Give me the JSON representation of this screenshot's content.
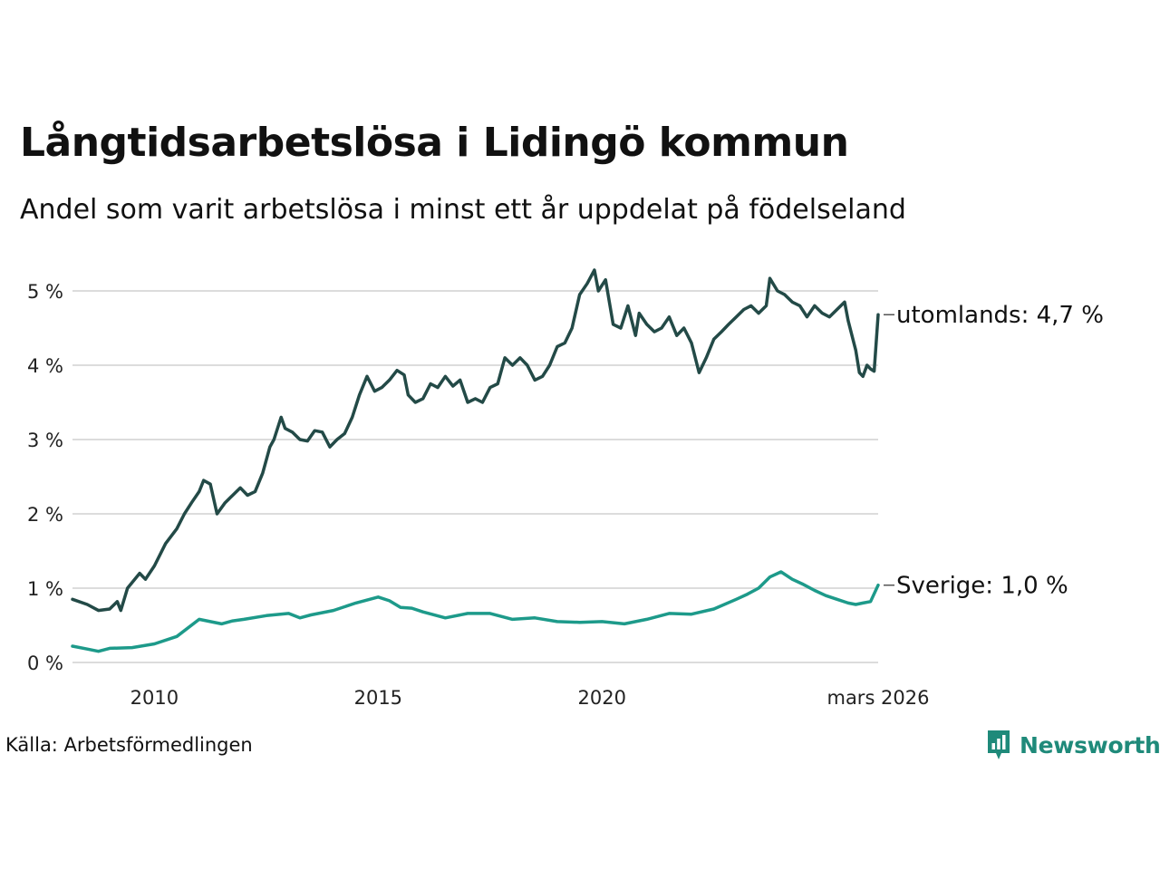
{
  "title": "Långtidsarbetslösa i Lidingö kommun",
  "subtitle": "Andel som varit arbetslösa i minst ett år uppdelat på födelseland",
  "source": "Källa: Arbetsförmedlingen",
  "brand": {
    "name": "Newsworthy",
    "color": "#1f8a7a",
    "icon": "newsworthy-logo-icon"
  },
  "chart_data": {
    "type": "line",
    "x_start": 2008.17,
    "x_end": 2026.17,
    "xlim": [
      2008.17,
      2026.17
    ],
    "ylim": [
      0,
      5.5
    ],
    "grid": true,
    "y_ticks": [
      {
        "value": 0,
        "label": "0 %"
      },
      {
        "value": 1,
        "label": "1 %"
      },
      {
        "value": 2,
        "label": "2 %"
      },
      {
        "value": 3,
        "label": "3 %"
      },
      {
        "value": 4,
        "label": "4 %"
      },
      {
        "value": 5,
        "label": "5 %"
      }
    ],
    "x_ticks": [
      {
        "value": 2010,
        "label": "2010"
      },
      {
        "value": 2015,
        "label": "2015"
      },
      {
        "value": 2020,
        "label": "2020"
      },
      {
        "value": 2026.17,
        "label": "mars 2026"
      }
    ],
    "series": [
      {
        "name": "utomlands",
        "end_label": "utomlands: 4,7 %",
        "color": "#234a47",
        "points": [
          [
            2008.17,
            0.85
          ],
          [
            2008.5,
            0.78
          ],
          [
            2008.75,
            0.7
          ],
          [
            2009.0,
            0.72
          ],
          [
            2009.17,
            0.82
          ],
          [
            2009.25,
            0.7
          ],
          [
            2009.4,
            1.0
          ],
          [
            2009.67,
            1.2
          ],
          [
            2009.8,
            1.12
          ],
          [
            2010.0,
            1.3
          ],
          [
            2010.25,
            1.6
          ],
          [
            2010.5,
            1.8
          ],
          [
            2010.67,
            2.0
          ],
          [
            2010.83,
            2.15
          ],
          [
            2011.0,
            2.3
          ],
          [
            2011.1,
            2.45
          ],
          [
            2011.25,
            2.4
          ],
          [
            2011.4,
            2.0
          ],
          [
            2011.58,
            2.15
          ],
          [
            2011.75,
            2.25
          ],
          [
            2011.92,
            2.35
          ],
          [
            2012.08,
            2.25
          ],
          [
            2012.25,
            2.3
          ],
          [
            2012.42,
            2.55
          ],
          [
            2012.58,
            2.9
          ],
          [
            2012.67,
            3.0
          ],
          [
            2012.83,
            3.3
          ],
          [
            2012.92,
            3.15
          ],
          [
            2013.08,
            3.1
          ],
          [
            2013.25,
            3.0
          ],
          [
            2013.42,
            2.98
          ],
          [
            2013.58,
            3.12
          ],
          [
            2013.75,
            3.1
          ],
          [
            2013.92,
            2.9
          ],
          [
            2014.08,
            3.0
          ],
          [
            2014.25,
            3.08
          ],
          [
            2014.42,
            3.3
          ],
          [
            2014.58,
            3.6
          ],
          [
            2014.75,
            3.85
          ],
          [
            2014.92,
            3.65
          ],
          [
            2015.08,
            3.7
          ],
          [
            2015.25,
            3.8
          ],
          [
            2015.42,
            3.93
          ],
          [
            2015.58,
            3.87
          ],
          [
            2015.67,
            3.6
          ],
          [
            2015.83,
            3.5
          ],
          [
            2016.0,
            3.55
          ],
          [
            2016.17,
            3.75
          ],
          [
            2016.33,
            3.7
          ],
          [
            2016.5,
            3.85
          ],
          [
            2016.67,
            3.72
          ],
          [
            2016.83,
            3.8
          ],
          [
            2017.0,
            3.5
          ],
          [
            2017.17,
            3.55
          ],
          [
            2017.33,
            3.5
          ],
          [
            2017.5,
            3.7
          ],
          [
            2017.67,
            3.75
          ],
          [
            2017.83,
            4.1
          ],
          [
            2018.0,
            4.0
          ],
          [
            2018.17,
            4.1
          ],
          [
            2018.33,
            4.0
          ],
          [
            2018.5,
            3.8
          ],
          [
            2018.67,
            3.85
          ],
          [
            2018.83,
            4.0
          ],
          [
            2019.0,
            4.25
          ],
          [
            2019.17,
            4.3
          ],
          [
            2019.33,
            4.5
          ],
          [
            2019.5,
            4.95
          ],
          [
            2019.67,
            5.1
          ],
          [
            2019.83,
            5.28
          ],
          [
            2019.92,
            5.0
          ],
          [
            2020.08,
            5.15
          ],
          [
            2020.25,
            4.55
          ],
          [
            2020.42,
            4.5
          ],
          [
            2020.58,
            4.8
          ],
          [
            2020.75,
            4.4
          ],
          [
            2020.83,
            4.7
          ],
          [
            2021.0,
            4.55
          ],
          [
            2021.17,
            4.45
          ],
          [
            2021.33,
            4.5
          ],
          [
            2021.5,
            4.65
          ],
          [
            2021.67,
            4.4
          ],
          [
            2021.83,
            4.5
          ],
          [
            2022.0,
            4.3
          ],
          [
            2022.17,
            3.9
          ],
          [
            2022.33,
            4.1
          ],
          [
            2022.5,
            4.35
          ],
          [
            2022.67,
            4.45
          ],
          [
            2022.83,
            4.55
          ],
          [
            2023.0,
            4.65
          ],
          [
            2023.17,
            4.75
          ],
          [
            2023.33,
            4.8
          ],
          [
            2023.5,
            4.7
          ],
          [
            2023.67,
            4.8
          ],
          [
            2023.75,
            5.17
          ],
          [
            2023.92,
            5.0
          ],
          [
            2024.08,
            4.95
          ],
          [
            2024.25,
            4.85
          ],
          [
            2024.42,
            4.8
          ],
          [
            2024.58,
            4.65
          ],
          [
            2024.75,
            4.8
          ],
          [
            2024.92,
            4.7
          ],
          [
            2025.08,
            4.65
          ],
          [
            2025.25,
            4.75
          ],
          [
            2025.42,
            4.85
          ],
          [
            2025.5,
            4.6
          ],
          [
            2025.67,
            4.2
          ],
          [
            2025.75,
            3.9
          ],
          [
            2025.83,
            3.85
          ],
          [
            2025.92,
            4.0
          ],
          [
            2026.0,
            3.95
          ],
          [
            2026.08,
            3.92
          ],
          [
            2026.17,
            4.68
          ]
        ]
      },
      {
        "name": "Sverige",
        "end_label": "Sverige: 1,0 %",
        "color": "#1d9a8a",
        "points": [
          [
            2008.17,
            0.22
          ],
          [
            2008.5,
            0.18
          ],
          [
            2008.75,
            0.15
          ],
          [
            2009.0,
            0.19
          ],
          [
            2009.5,
            0.2
          ],
          [
            2010.0,
            0.25
          ],
          [
            2010.5,
            0.35
          ],
          [
            2011.0,
            0.58
          ],
          [
            2011.25,
            0.55
          ],
          [
            2011.5,
            0.52
          ],
          [
            2011.75,
            0.56
          ],
          [
            2012.0,
            0.58
          ],
          [
            2012.5,
            0.63
          ],
          [
            2013.0,
            0.66
          ],
          [
            2013.25,
            0.6
          ],
          [
            2013.5,
            0.64
          ],
          [
            2014.0,
            0.7
          ],
          [
            2014.5,
            0.8
          ],
          [
            2015.0,
            0.88
          ],
          [
            2015.25,
            0.83
          ],
          [
            2015.5,
            0.74
          ],
          [
            2015.75,
            0.73
          ],
          [
            2016.0,
            0.68
          ],
          [
            2016.5,
            0.6
          ],
          [
            2017.0,
            0.66
          ],
          [
            2017.5,
            0.66
          ],
          [
            2018.0,
            0.58
          ],
          [
            2018.5,
            0.6
          ],
          [
            2019.0,
            0.55
          ],
          [
            2019.5,
            0.54
          ],
          [
            2020.0,
            0.55
          ],
          [
            2020.5,
            0.52
          ],
          [
            2021.0,
            0.58
          ],
          [
            2021.5,
            0.66
          ],
          [
            2022.0,
            0.65
          ],
          [
            2022.5,
            0.72
          ],
          [
            2023.0,
            0.85
          ],
          [
            2023.25,
            0.92
          ],
          [
            2023.5,
            1.0
          ],
          [
            2023.75,
            1.15
          ],
          [
            2024.0,
            1.22
          ],
          [
            2024.25,
            1.12
          ],
          [
            2024.5,
            1.05
          ],
          [
            2024.75,
            0.97
          ],
          [
            2025.0,
            0.9
          ],
          [
            2025.25,
            0.85
          ],
          [
            2025.5,
            0.8
          ],
          [
            2025.67,
            0.78
          ],
          [
            2025.83,
            0.8
          ],
          [
            2026.0,
            0.82
          ],
          [
            2026.17,
            1.04
          ]
        ]
      }
    ]
  }
}
